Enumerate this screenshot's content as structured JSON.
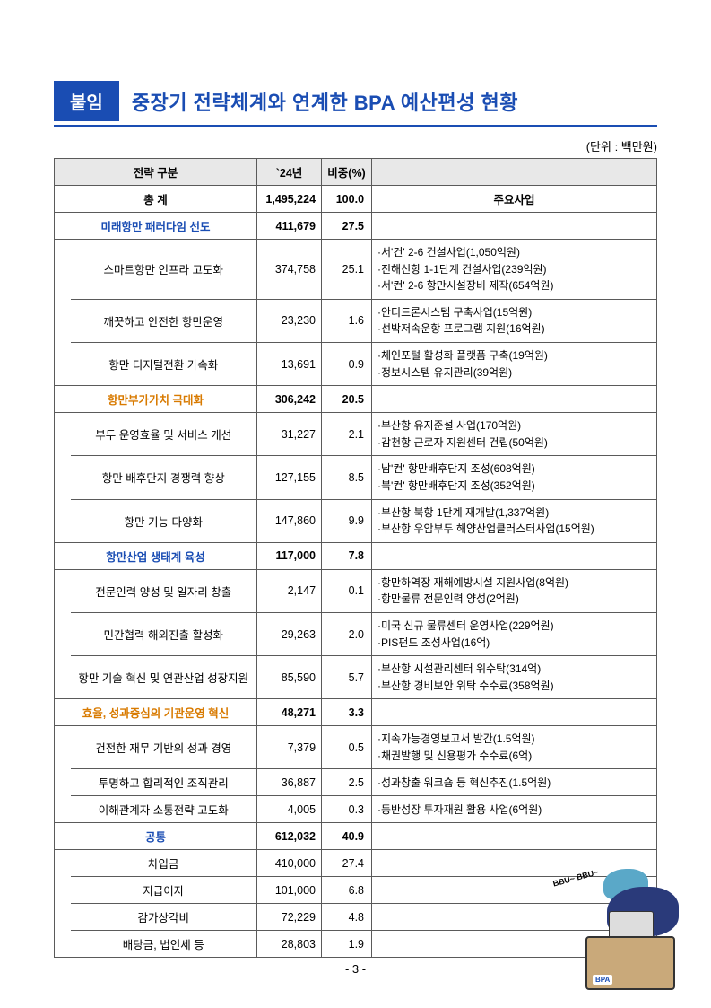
{
  "header": {
    "badge": "붙임",
    "title": "중장기 전략체계와 연계한 BPA 예산편성 현황",
    "unit": "(단위 : 백만원)"
  },
  "columns": {
    "strategy": "전략 구분",
    "year": "`24년",
    "pct": "비중(%)",
    "desc": "주요사업"
  },
  "total": {
    "label": "총 계",
    "amt": "1,495,224",
    "pct": "100.0"
  },
  "sections": [
    {
      "label": "미래항만 패러다임 선도",
      "amt": "411,679",
      "pct": "27.5",
      "color": "blue",
      "rows": [
        {
          "name": "스마트항만 인프라 고도화",
          "amt": "374,758",
          "pct": "25.1",
          "desc": "·서'컨' 2-6 건설사업(1,050억원)\n·진해신항 1-1단계 건설사업(239억원)\n·서'컨' 2-6 항만시설장비 제작(654억원)"
        },
        {
          "name": "깨끗하고 안전한 항만운영",
          "amt": "23,230",
          "pct": "1.6",
          "desc": "·안티드론시스템 구축사업(15억원)\n·선박저속운항 프로그램 지원(16억원)"
        },
        {
          "name": "항만 디지털전환 가속화",
          "amt": "13,691",
          "pct": "0.9",
          "desc": "·체인포털 활성화 플랫폼 구축(19억원)\n·정보시스템 유지관리(39억원)"
        }
      ]
    },
    {
      "label": "항만부가가치 극대화",
      "amt": "306,242",
      "pct": "20.5",
      "color": "orange",
      "rows": [
        {
          "name": "부두 운영효율 및 서비스 개선",
          "amt": "31,227",
          "pct": "2.1",
          "desc": "·부산항 유지준설 사업(170억원)\n·감천항 근로자 지원센터 건립(50억원)"
        },
        {
          "name": "항만 배후단지 경쟁력 향상",
          "amt": "127,155",
          "pct": "8.5",
          "desc": "·남'컨' 항만배후단지 조성(608억원)\n·북'컨' 항만배후단지 조성(352억원)"
        },
        {
          "name": "항만 기능 다양화",
          "amt": "147,860",
          "pct": "9.9",
          "desc": "·부산항 북항 1단계 재개발(1,337억원)\n·부산항 우암부두 해양산업클러스터사업(15억원)"
        }
      ]
    },
    {
      "label": "항만산업 생태계 육성",
      "amt": "117,000",
      "pct": "7.8",
      "color": "blue",
      "rows": [
        {
          "name": "전문인력 양성 및 일자리 창출",
          "amt": "2,147",
          "pct": "0.1",
          "desc": "·항만하역장 재해예방시설 지원사업(8억원)\n·항만물류 전문인력 양성(2억원)"
        },
        {
          "name": "민간협력 해외진출 활성화",
          "amt": "29,263",
          "pct": "2.0",
          "desc": "·미국 신규 물류센터 운영사업(229억원)\n·PIS펀드 조성사업(16억)"
        },
        {
          "name": "항만 기술 혁신 및 연관산업 성장지원",
          "amt": "85,590",
          "pct": "5.7",
          "desc": "·부산항 시설관리센터 위수탁(314억)\n·부산항 경비보안 위탁 수수료(358억원)"
        }
      ]
    },
    {
      "label": "효율, 성과중심의 기관운영 혁신",
      "amt": "48,271",
      "pct": "3.3",
      "color": "orange",
      "rows": [
        {
          "name": "건전한 재무 기반의 성과 경영",
          "amt": "7,379",
          "pct": "0.5",
          "desc": "·지속가능경영보고서 발간(1.5억원)\n·채권발행 및 신용평가 수수료(6억)"
        },
        {
          "name": "투명하고 합리적인 조직관리",
          "amt": "36,887",
          "pct": "2.5",
          "desc": "·성과창출 워크숍 등 혁신추진(1.5억원)"
        },
        {
          "name": "이해관계자 소통전략 고도화",
          "amt": "4,005",
          "pct": "0.3",
          "desc": "·동반성장 투자재원 활용 사업(6억원)"
        }
      ]
    },
    {
      "label": "공통",
      "amt": "612,032",
      "pct": "40.9",
      "color": "blue",
      "rows": [
        {
          "name": "차입금",
          "amt": "410,000",
          "pct": "27.4",
          "desc": ""
        },
        {
          "name": "지급이자",
          "amt": "101,000",
          "pct": "6.8",
          "desc": ""
        },
        {
          "name": "감가상각비",
          "amt": "72,229",
          "pct": "4.8",
          "desc": ""
        },
        {
          "name": "배당금, 법인세 등",
          "amt": "28,803",
          "pct": "1.9",
          "desc": ""
        }
      ]
    }
  ],
  "pageNum": "- 3 -",
  "mascot": {
    "bubble": "BBU~\nBBU~",
    "bpa": "BPA"
  }
}
